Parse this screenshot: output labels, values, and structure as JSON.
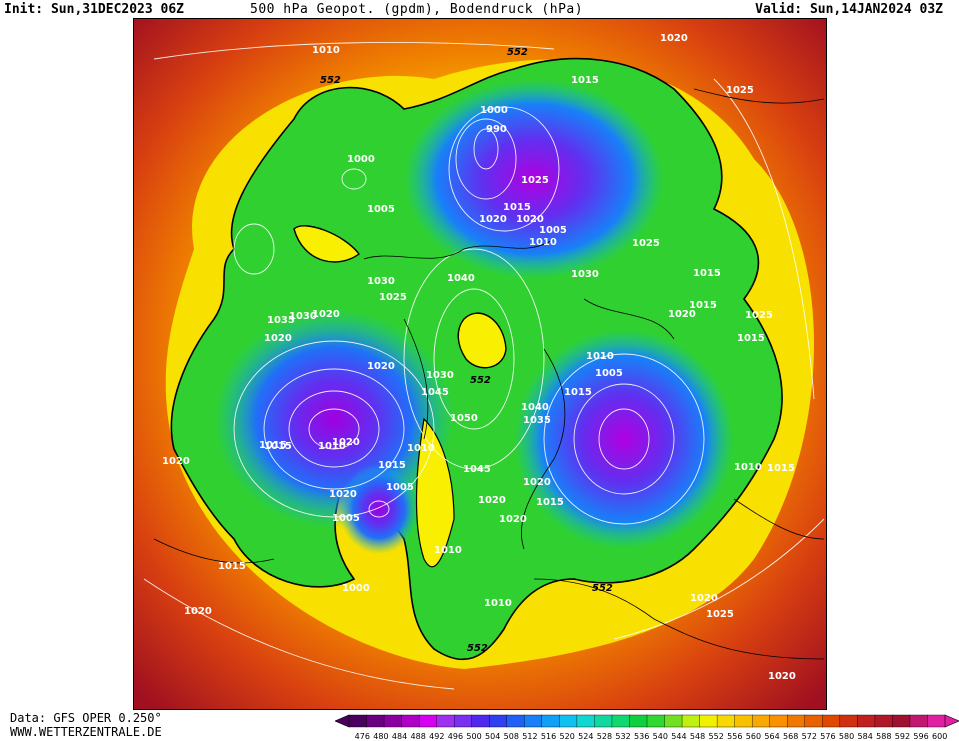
{
  "header": {
    "init": "Init: Sun,31DEC2023 06Z",
    "title": "500 hPa Geopot. (gpdm), Bodendruck (hPa)",
    "valid": "Valid: Sun,14JAN2024 03Z"
  },
  "footer": {
    "data_source": "Data: GFS OPER 0.250°",
    "website": "WWW.WETTERZENTRALE.DE"
  },
  "colorbar": {
    "ticks": [
      "476",
      "480",
      "484",
      "488",
      "492",
      "496",
      "500",
      "504",
      "508",
      "512",
      "516",
      "520",
      "524",
      "528",
      "532",
      "536",
      "540",
      "544",
      "548",
      "552",
      "556",
      "560",
      "564",
      "568",
      "572",
      "576",
      "580",
      "584",
      "588",
      "592",
      "596",
      "600"
    ],
    "colors": [
      "#4b0060",
      "#6a0080",
      "#8a00a0",
      "#b000c8",
      "#d800f0",
      "#a030f0",
      "#7a30f0",
      "#5028f0",
      "#3040f0",
      "#2060f8",
      "#1880f8",
      "#10a0f8",
      "#10c0f0",
      "#10d8d0",
      "#10d8a0",
      "#10d870",
      "#10d040",
      "#30d830",
      "#70e020",
      "#c0f010",
      "#f0f000",
      "#f8d800",
      "#f8c000",
      "#f8a800",
      "#f89000",
      "#f07800",
      "#e86000",
      "#e04800",
      "#d03010",
      "#c02020",
      "#b01828",
      "#a01030",
      "#c01870",
      "#e020a0"
    ]
  },
  "map": {
    "contour_552_label": "552",
    "pressure_labels": [
      "1010",
      "552",
      "1015",
      "1020",
      "1025",
      "552",
      "1000",
      "990",
      "1000",
      "1025",
      "1020",
      "1015",
      "1005",
      "1005",
      "1020",
      "1010",
      "1025",
      "1030",
      "1015",
      "1040",
      "1030",
      "1025",
      "1030",
      "1020",
      "1035",
      "1020",
      "1015",
      "1020",
      "1025",
      "1015",
      "1010",
      "1005",
      "1020",
      "1030",
      "1045",
      "552",
      "1050",
      "1040",
      "1035",
      "1015",
      "1010",
      "1015",
      "1010",
      "1005",
      "1020",
      "1010",
      "1015",
      "1020",
      "1045",
      "1020",
      "1020",
      "1015",
      "1015",
      "1020",
      "1015",
      "1005",
      "1020",
      "1010",
      "1000",
      "1015",
      "1020",
      "1010",
      "552",
      "552",
      "1025",
      "1020",
      "1020"
    ]
  }
}
